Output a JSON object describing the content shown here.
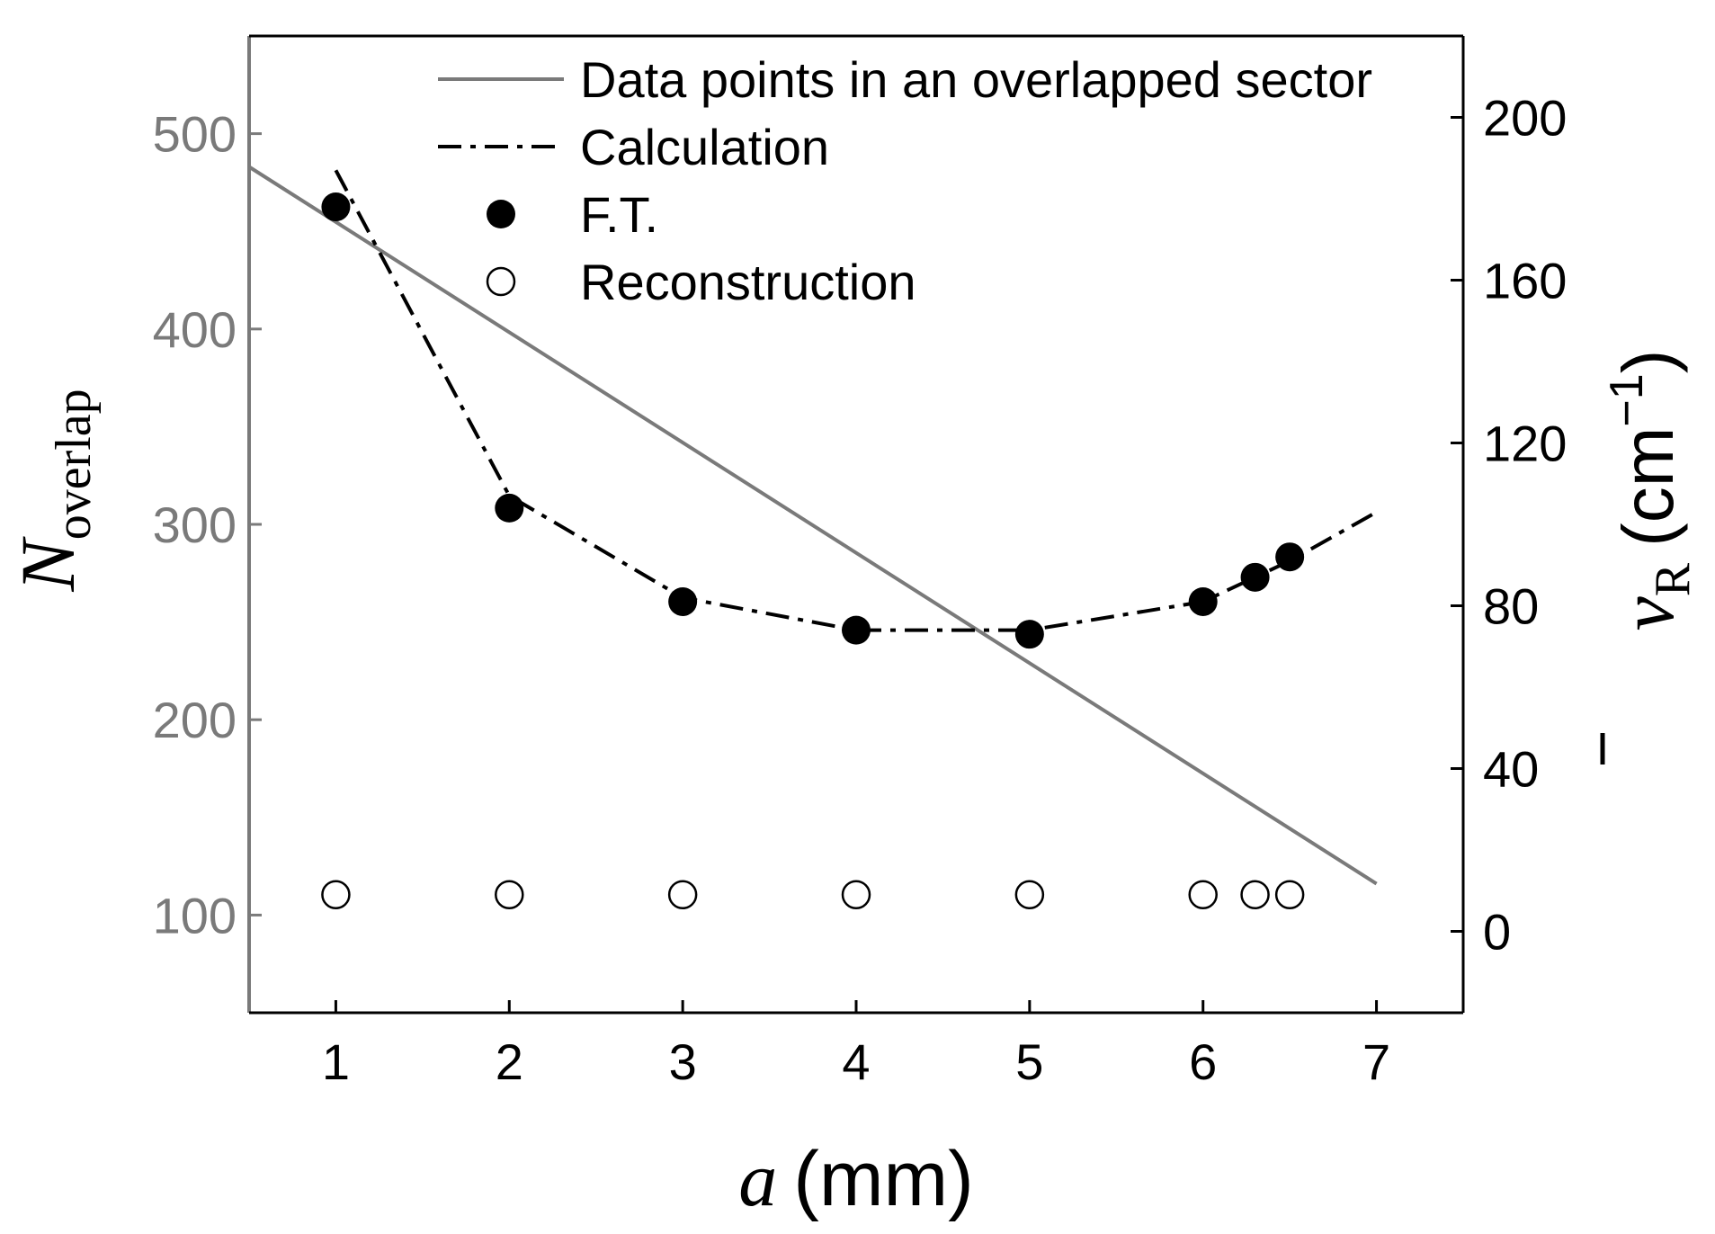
{
  "chart_data": {
    "type": "line",
    "title": "",
    "xlabel": {
      "symbol": "a",
      "unit": "(mm)"
    },
    "ylabel_left": {
      "symbol": "N",
      "subscript": "overlap"
    },
    "ylabel_right": {
      "symbol": "v",
      "subscript": "R",
      "unit_open": "(cm",
      "unit_sup": "−1",
      "unit_close": ")"
    },
    "xlim": [
      0.5,
      7.5
    ],
    "ylim_left": [
      50,
      550
    ],
    "ylim_right": [
      -20,
      220
    ],
    "xticks": [
      1,
      2,
      3,
      4,
      5,
      6,
      7
    ],
    "xtick_labels": [
      "1",
      "2",
      "3",
      "4",
      "5",
      "6",
      "7"
    ],
    "yticks_left": [
      100,
      200,
      300,
      400,
      500
    ],
    "ytick_labels_left": [
      "100",
      "200",
      "300",
      "400",
      "500"
    ],
    "yticks_right": [
      0,
      40,
      80,
      120,
      160,
      200
    ],
    "ytick_labels_right": [
      "0",
      "40",
      "80",
      "120",
      "160",
      "200"
    ],
    "legend_position": "top-right",
    "colors": {
      "gray": "#7a7a7a",
      "black": "#000000"
    },
    "series": [
      {
        "name": "Data points in an overlapped sector",
        "style": "solid-line",
        "axis": "left",
        "color": "#7a7a7a",
        "x": [
          0.5,
          7.0
        ],
        "y": [
          483,
          116
        ]
      },
      {
        "name": "Calculation",
        "style": "dash-dot-line",
        "axis": "right",
        "color": "#000000",
        "x": [
          1.0,
          2.0,
          3.0,
          4.0,
          5.0,
          6.0,
          6.5,
          7.0
        ],
        "y": [
          187,
          107,
          82,
          74,
          74,
          81,
          91,
          103
        ]
      },
      {
        "name": "F.T.",
        "style": "filled-circle",
        "axis": "right",
        "color": "#000000",
        "x": [
          1,
          2,
          3,
          4,
          5,
          6,
          6.3,
          6.5
        ],
        "y": [
          178,
          104,
          81,
          74,
          73,
          81,
          87,
          92
        ]
      },
      {
        "name": "Reconstruction",
        "style": "open-circle",
        "axis": "right",
        "color": "#000000",
        "x": [
          1,
          2,
          3,
          4,
          5,
          6,
          6.3,
          6.5
        ],
        "y": [
          9,
          9,
          9,
          9,
          9,
          9,
          9,
          9
        ]
      }
    ]
  }
}
